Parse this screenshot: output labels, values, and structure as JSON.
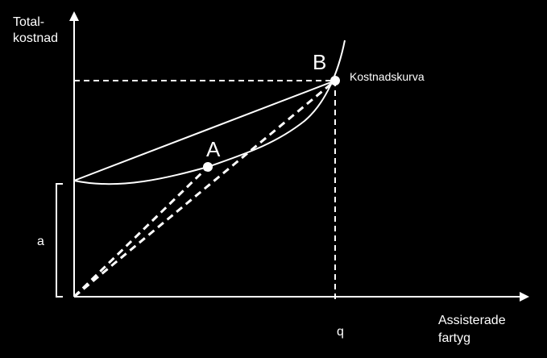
{
  "colors": {
    "background": "#000000",
    "foreground": "#ffffff"
  },
  "labels": {
    "y_axis_line1": "Total-",
    "y_axis_line2": "kostnad",
    "x_axis_line1": "Assisterade",
    "x_axis_line2": "fartyg",
    "point_a": "A",
    "point_b": "B",
    "curve": "Kostnadskurva",
    "fixed_cost": "a",
    "quantity": "q"
  }
}
